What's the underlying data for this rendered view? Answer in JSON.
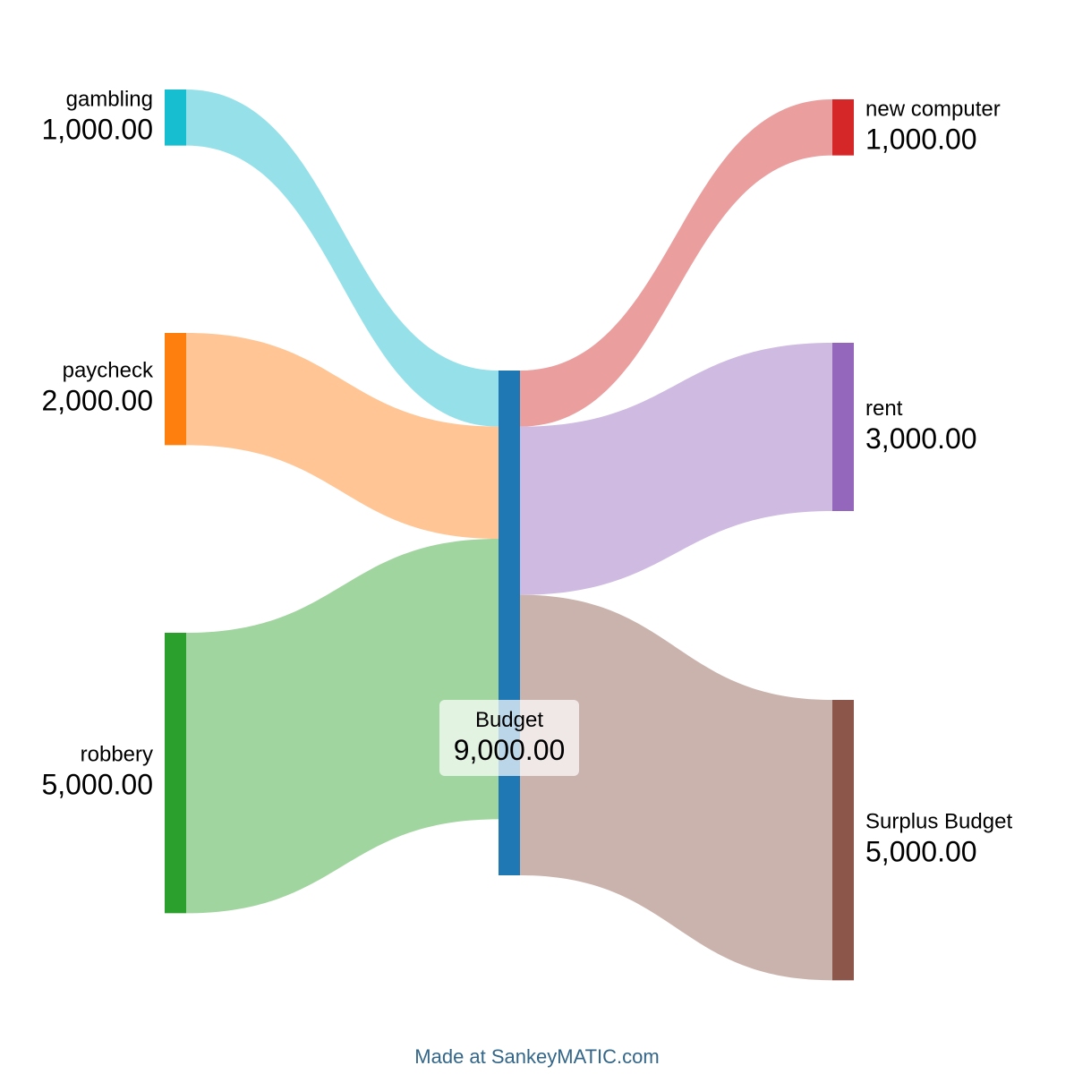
{
  "diagram": {
    "type": "sankey",
    "nodes": [
      {
        "id": "gambling",
        "label": "gambling",
        "value_label": "1,000.00",
        "color": "#17becf"
      },
      {
        "id": "paycheck",
        "label": "paycheck",
        "value_label": "2,000.00",
        "color": "#ff7f0e"
      },
      {
        "id": "robbery",
        "label": "robbery",
        "value_label": "5,000.00",
        "color": "#2ca02c"
      },
      {
        "id": "budget",
        "label": "Budget",
        "value_label": "9,000.00",
        "color": "#1f77b4"
      },
      {
        "id": "new_computer",
        "label": "new computer",
        "value_label": "1,000.00",
        "color": "#d62728"
      },
      {
        "id": "rent",
        "label": "rent",
        "value_label": "3,000.00",
        "color": "#9467bd"
      },
      {
        "id": "surplus_budget",
        "label": "Surplus Budget",
        "value_label": "5,000.00",
        "color": "#8c564b"
      }
    ],
    "links": [
      {
        "source": "gambling",
        "target": "budget",
        "value": 1000,
        "color": "#96e1e9"
      },
      {
        "source": "paycheck",
        "target": "budget",
        "value": 2000,
        "color": "#ffc595"
      },
      {
        "source": "robbery",
        "target": "budget",
        "value": 5000,
        "color": "#a1d59f"
      },
      {
        "source": "budget",
        "target": "new_computer",
        "value": 1000,
        "color": "#eb9e9e"
      },
      {
        "source": "budget",
        "target": "rent",
        "value": 3000,
        "color": "#cfbae1"
      },
      {
        "source": "budget",
        "target": "surplus_budget",
        "value": 5000,
        "color": "#cbb3ad"
      }
    ]
  },
  "credit": "Made at SankeyMATIC.com"
}
